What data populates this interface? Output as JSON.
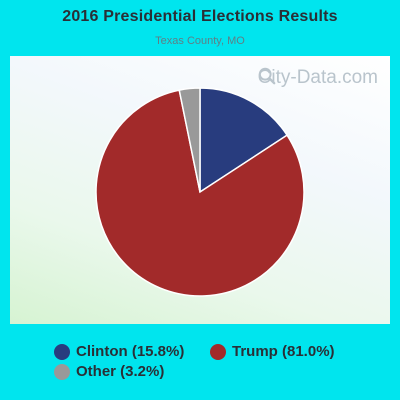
{
  "title": "2016 Presidential Elections Results",
  "subtitle": "Texas County, MO",
  "watermark": "City-Data.com",
  "chart_data": {
    "type": "pie",
    "title": "2016 Presidential Elections Results",
    "subtitle": "Texas County, MO",
    "slices": [
      {
        "label": "Clinton",
        "value": 15.8,
        "color": "#283c7e"
      },
      {
        "label": "Trump",
        "value": 81.0,
        "color": "#a22a2a"
      },
      {
        "label": "Other",
        "value": 3.2,
        "color": "#999999"
      }
    ],
    "legend": {
      "placement": "bottom",
      "entries": [
        {
          "text": "Clinton (15.8%)",
          "color": "#283c7e"
        },
        {
          "text": "Trump (81.0%)",
          "color": "#a22a2a"
        },
        {
          "text": "Other (3.2%)",
          "color": "#999999"
        }
      ]
    }
  }
}
